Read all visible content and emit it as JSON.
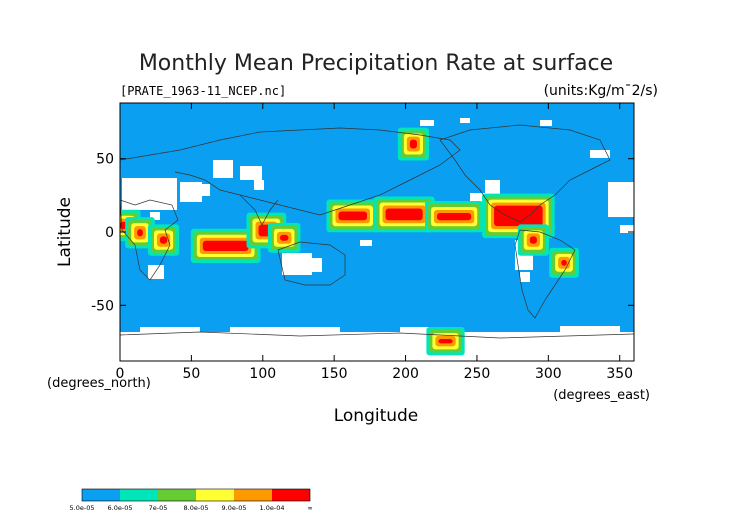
{
  "chart_data": {
    "type": "heatmap",
    "title": "Monthly Mean Precipitation Rate at surface",
    "file_label": "[PRATE_1963-11_NCEP.nc]",
    "units_label": "(units:Kg/m¯2/s)",
    "xlabel": "Longitude",
    "ylabel": "Latitude",
    "x_unit_label": "(degrees_east)",
    "y_unit_label": "(degrees_north)",
    "xlim": [
      0,
      360
    ],
    "ylim": [
      -88,
      88
    ],
    "x_ticks": [
      0,
      50,
      100,
      150,
      200,
      250,
      300,
      350
    ],
    "y_ticks": [
      -50,
      0,
      50
    ],
    "colorbar": {
      "labels": [
        "5.0e-05",
        "6.0e-05",
        "7e-05",
        "8.0e-05",
        "9.0e-05",
        "1.0e-04",
        "∞"
      ],
      "colors": [
        "#0a9ff0",
        "#00e6b8",
        "#66cc33",
        "#ffff33",
        "#ff9900",
        "#ff0000"
      ]
    },
    "background_color": "#0a9ff0",
    "missing_color": "#ffffff",
    "regions": [
      {
        "level": 5,
        "lon": [
          0,
          6
        ],
        "lat": [
          2,
          7
        ]
      },
      {
        "level": 5,
        "lon": [
          12,
          16
        ],
        "lat": [
          -3,
          2
        ]
      },
      {
        "level": 5,
        "lon": [
          28,
          33
        ],
        "lat": [
          -8,
          -3
        ]
      },
      {
        "level": 5,
        "lon": [
          58,
          90
        ],
        "lat": [
          -13,
          -6
        ]
      },
      {
        "level": 5,
        "lon": [
          97,
          108
        ],
        "lat": [
          -3,
          5
        ]
      },
      {
        "level": 5,
        "lon": [
          112,
          118
        ],
        "lat": [
          -6,
          -2
        ]
      },
      {
        "level": 5,
        "lon": [
          153,
          173
        ],
        "lat": [
          8,
          14
        ]
      },
      {
        "level": 5,
        "lon": [
          186,
          212
        ],
        "lat": [
          8,
          16
        ]
      },
      {
        "level": 5,
        "lon": [
          222,
          246
        ],
        "lat": [
          8,
          13
        ]
      },
      {
        "level": 5,
        "lon": [
          262,
          296
        ],
        "lat": [
          4,
          18
        ]
      },
      {
        "level": 5,
        "lon": [
          203,
          208
        ],
        "lat": [
          57,
          63
        ]
      },
      {
        "level": 5,
        "lon": [
          287,
          292
        ],
        "lat": [
          -8,
          -3
        ]
      },
      {
        "level": 5,
        "lon": [
          309,
          313
        ],
        "lat": [
          -23,
          -19
        ]
      },
      {
        "level": 5,
        "lon": [
          223,
          233
        ],
        "lat": [
          -76,
          -73
        ]
      }
    ]
  }
}
